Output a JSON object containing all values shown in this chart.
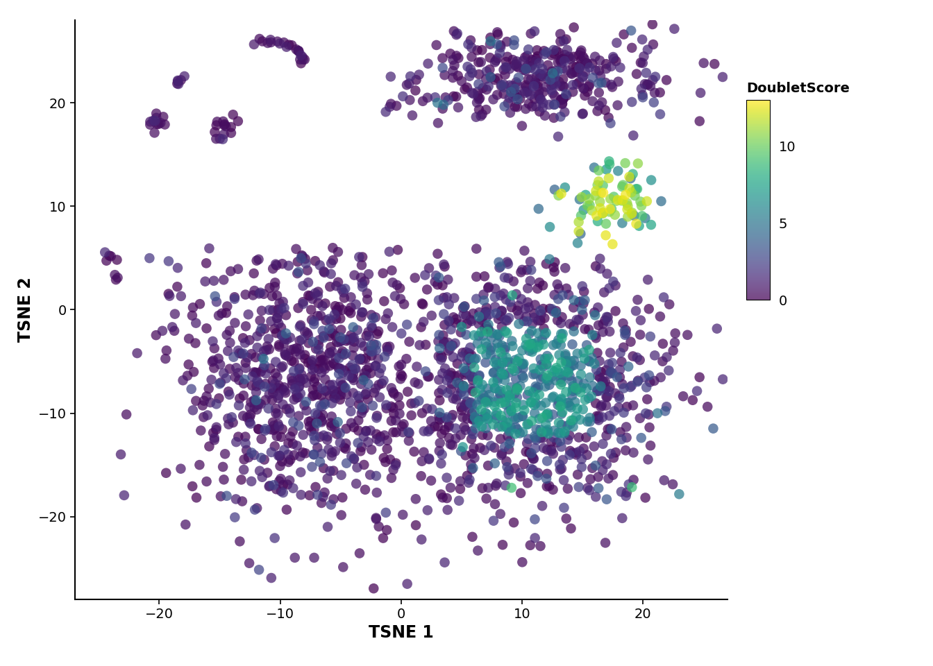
{
  "title": "",
  "xlabel": "TSNE 1",
  "ylabel": "TSNE 2",
  "xlim": [
    -27,
    27
  ],
  "ylim": [
    -28,
    28
  ],
  "xticks": [
    -20,
    -10,
    0,
    10,
    20
  ],
  "yticks": [
    -20,
    -10,
    0,
    10,
    20
  ],
  "colorbar_label": "DoubletScore",
  "colorbar_ticks": [
    0,
    5,
    10
  ],
  "vmin": 0,
  "vmax": 13,
  "point_size": 110,
  "alpha": 0.72,
  "cmap": "viridis",
  "background_color": "#ffffff",
  "seed": 42
}
